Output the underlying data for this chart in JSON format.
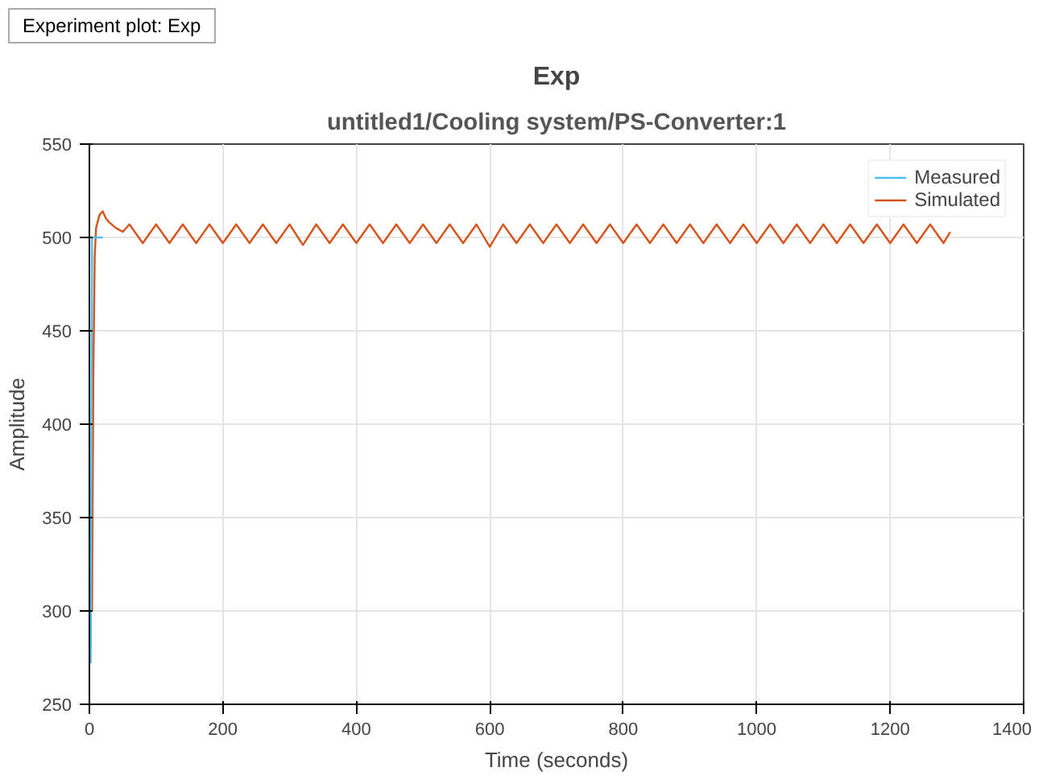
{
  "chart_data": {
    "type": "line",
    "title": "Exp",
    "subtitle": "untitled1/Cooling system/PS-Converter:1",
    "xlabel": "Time (seconds)",
    "ylabel": "Amplitude",
    "annotations": [
      "Experiment plot: Exp"
    ],
    "xlim": [
      0,
      1400
    ],
    "xticks": [
      0,
      200,
      400,
      600,
      800,
      1000,
      1200,
      1400
    ],
    "ylim": [
      250,
      550
    ],
    "yticks": [
      250,
      300,
      350,
      400,
      450,
      500,
      550
    ],
    "grid": true,
    "legend": "top right",
    "line_style": "solid",
    "marker": "none",
    "series": [
      {
        "name": "Measured",
        "color": "#4dbeee",
        "x": [
          2,
          4,
          20
        ],
        "values": [
          272,
          500,
          500
        ]
      },
      {
        "name": "Simulated",
        "color": "#d95319",
        "x": [
          4,
          6,
          8,
          10,
          15,
          20,
          25,
          30,
          40,
          50,
          60,
          80,
          100,
          120,
          140,
          160,
          180,
          200,
          220,
          240,
          260,
          280,
          300,
          320,
          340,
          360,
          380,
          400,
          420,
          440,
          460,
          480,
          500,
          520,
          540,
          560,
          580,
          600,
          620,
          640,
          660,
          680,
          700,
          720,
          740,
          760,
          780,
          800,
          820,
          840,
          860,
          880,
          900,
          920,
          940,
          960,
          980,
          1000,
          1020,
          1040,
          1060,
          1080,
          1100,
          1120,
          1140,
          1160,
          1180,
          1200,
          1220,
          1240,
          1260,
          1280,
          1290
        ],
        "values": [
          300,
          430,
          490,
          505,
          512,
          514,
          510,
          508,
          505,
          503,
          507,
          497,
          507,
          497,
          507,
          497,
          507,
          497,
          507,
          497,
          507,
          497,
          507,
          496,
          507,
          497,
          507,
          497,
          507,
          497,
          507,
          497,
          507,
          497,
          507,
          497,
          507,
          495,
          507,
          497,
          507,
          497,
          507,
          497,
          507,
          497,
          507,
          497,
          507,
          497,
          507,
          497,
          507,
          497,
          507,
          497,
          507,
          497,
          507,
          497,
          507,
          497,
          507,
          497,
          507,
          497,
          507,
          497,
          507,
          497,
          507,
          497,
          503
        ]
      }
    ]
  }
}
